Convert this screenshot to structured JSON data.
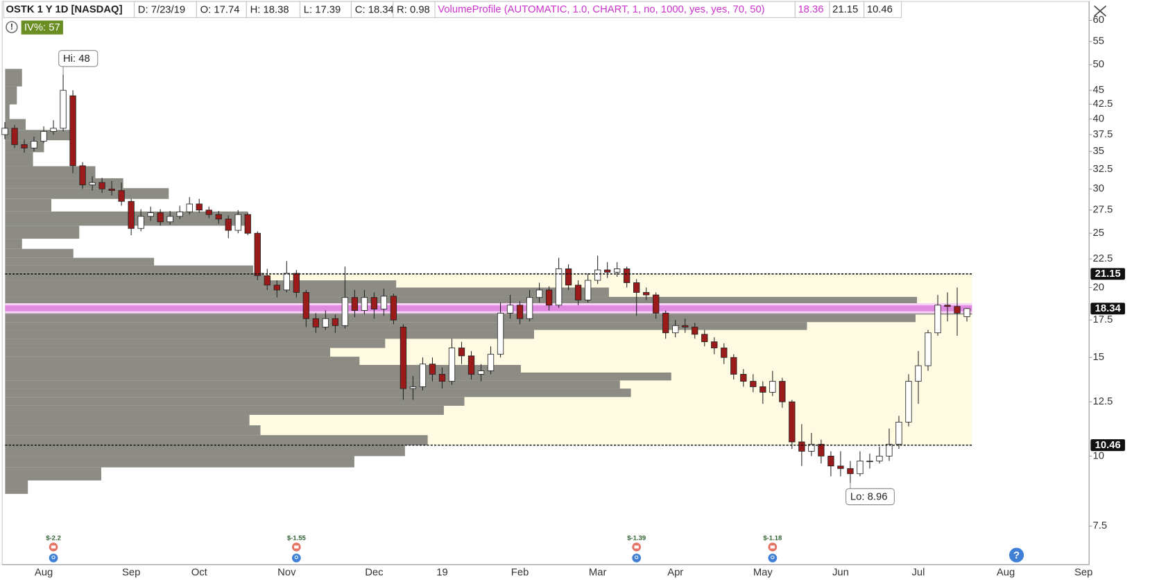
{
  "chart_data": {
    "type": "candlestick",
    "log_y": true,
    "ylim": [
      6.4,
      60.5
    ],
    "yticks": [
      7.5,
      10,
      12.5,
      15,
      17.5,
      20,
      22.5,
      25,
      27.5,
      30,
      32.5,
      35,
      37.5,
      40,
      42.5,
      45,
      50,
      55,
      60
    ],
    "up_color": "#ffffff",
    "down_color": "#9b1b1b",
    "header": {
      "symbol": "OSTK 1 Y 1D [NASDAQ]",
      "fields": [
        {
          "label": "D:",
          "value": "7/23/19"
        },
        {
          "label": "O:",
          "value": 17.74
        },
        {
          "label": "H:",
          "value": 18.38
        },
        {
          "label": "L:",
          "value": 17.39
        },
        {
          "label": "C:",
          "value": 18.34
        },
        {
          "label": "R:",
          "value": 0.98
        }
      ]
    },
    "iv": {
      "label": "IV%:",
      "value": 57
    },
    "study": {
      "name": "VolumeProfile (AUTOMATIC, 1.0, CHART, 1, no, 1000, yes, yes, 70, 50)",
      "color": "#cc33cc",
      "poc": 18.36,
      "value_area_high": 21.15,
      "value_area_low": 10.46
    },
    "annotations": {
      "high": {
        "label": "Hi:",
        "value": 48
      },
      "low": {
        "label": "Lo:",
        "value": 8.96
      }
    },
    "categories": [
      null,
      null,
      null,
      null,
      "Aug",
      null,
      null,
      null,
      null,
      null,
      null,
      null,
      null,
      "Sep",
      null,
      null,
      null,
      null,
      null,
      null,
      "Oct",
      null,
      null,
      null,
      null,
      null,
      null,
      null,
      null,
      "Nov",
      null,
      null,
      null,
      null,
      null,
      null,
      null,
      null,
      "Dec",
      null,
      null,
      null,
      null,
      null,
      null,
      "19",
      null,
      null,
      null,
      null,
      null,
      null,
      null,
      "Feb",
      null,
      null,
      null,
      null,
      null,
      null,
      null,
      "Mar",
      null,
      null,
      null,
      null,
      null,
      null,
      null,
      "Apr",
      null,
      null,
      null,
      null,
      null,
      null,
      null,
      null,
      "May",
      null,
      null,
      null,
      null,
      null,
      null,
      null,
      "Jun",
      null,
      null,
      null,
      null,
      null,
      null,
      null,
      "Jul",
      null,
      null,
      null,
      null,
      null,
      null,
      null,
      null,
      "Aug",
      null,
      null,
      null,
      null,
      null,
      null,
      null,
      "Sep"
    ],
    "earnings": [
      null,
      null,
      null,
      null,
      null,
      "$-2.2",
      null,
      null,
      null,
      null,
      null,
      null,
      null,
      null,
      null,
      null,
      null,
      null,
      null,
      null,
      null,
      null,
      null,
      null,
      null,
      null,
      null,
      null,
      null,
      null,
      "$-1.55",
      null,
      null,
      null,
      null,
      null,
      null,
      null,
      null,
      null,
      null,
      null,
      null,
      null,
      null,
      null,
      null,
      null,
      null,
      null,
      null,
      null,
      null,
      null,
      null,
      null,
      null,
      null,
      null,
      null,
      null,
      null,
      null,
      null,
      null,
      "$-1.39",
      null,
      null,
      null,
      null,
      null,
      null,
      null,
      null,
      null,
      null,
      null,
      null,
      null,
      "$-1.18",
      null,
      null,
      null,
      null,
      null,
      null,
      null,
      null,
      null,
      null,
      null,
      null,
      null,
      null,
      null,
      null,
      null,
      null,
      null,
      null,
      null,
      null,
      null,
      null,
      null,
      null,
      null,
      null,
      null,
      null,
      null,
      null
    ],
    "candles": [
      [
        37.5,
        39.5,
        36.8,
        38.5
      ],
      [
        38.5,
        39.0,
        35.5,
        36.0
      ],
      [
        36.0,
        36.8,
        34.8,
        35.5
      ],
      [
        35.5,
        37.2,
        35.0,
        36.5
      ],
      [
        36.5,
        38.8,
        36.2,
        38.0
      ],
      [
        38.0,
        39.8,
        37.5,
        38.5
      ],
      [
        38.5,
        48.0,
        38.0,
        45.0
      ],
      [
        44.0,
        45.0,
        32.0,
        33.0
      ],
      [
        33.0,
        33.5,
        30.0,
        30.5
      ],
      [
        30.5,
        31.6,
        29.8,
        30.8
      ],
      [
        30.8,
        31.4,
        29.5,
        30.0
      ],
      [
        30.0,
        31.0,
        29.2,
        29.8
      ],
      [
        29.8,
        30.8,
        28.0,
        28.5
      ],
      [
        28.5,
        28.8,
        24.8,
        25.5
      ],
      [
        25.5,
        27.6,
        25.2,
        26.8
      ],
      [
        26.8,
        27.9,
        26.3,
        27.2
      ],
      [
        27.2,
        27.6,
        25.8,
        26.2
      ],
      [
        26.2,
        27.4,
        25.9,
        26.8
      ],
      [
        26.8,
        28.0,
        26.5,
        27.3
      ],
      [
        27.3,
        29.0,
        27.0,
        28.2
      ],
      [
        28.2,
        28.8,
        27.2,
        27.5
      ],
      [
        27.5,
        27.9,
        26.6,
        27.0
      ],
      [
        27.0,
        27.4,
        26.0,
        26.5
      ],
      [
        26.5,
        26.9,
        24.5,
        25.3
      ],
      [
        25.3,
        27.5,
        25.0,
        27.0
      ],
      [
        27.0,
        27.2,
        24.8,
        25.0
      ],
      [
        25.0,
        25.2,
        20.6,
        21.0
      ],
      [
        21.0,
        21.6,
        19.8,
        20.2
      ],
      [
        20.2,
        20.6,
        19.2,
        19.8
      ],
      [
        19.8,
        22.3,
        19.6,
        21.2
      ],
      [
        21.2,
        21.5,
        19.2,
        19.6
      ],
      [
        19.6,
        19.8,
        17.0,
        17.6
      ],
      [
        17.6,
        18.0,
        16.6,
        17.0
      ],
      [
        17.0,
        18.2,
        16.8,
        17.6
      ],
      [
        17.6,
        17.9,
        16.6,
        17.1
      ],
      [
        17.1,
        21.8,
        16.9,
        19.2
      ],
      [
        19.2,
        19.8,
        17.7,
        18.2
      ],
      [
        18.2,
        19.8,
        17.9,
        19.2
      ],
      [
        19.2,
        19.6,
        17.6,
        18.3
      ],
      [
        18.3,
        19.9,
        17.8,
        19.3
      ],
      [
        19.3,
        19.5,
        17.2,
        17.5
      ],
      [
        17.0,
        17.2,
        12.6,
        13.2
      ],
      [
        13.2,
        13.9,
        12.6,
        13.3
      ],
      [
        13.3,
        15.0,
        13.1,
        14.6
      ],
      [
        14.6,
        15.0,
        13.6,
        14.0
      ],
      [
        14.0,
        14.4,
        13.2,
        13.6
      ],
      [
        13.6,
        16.2,
        13.4,
        15.6
      ],
      [
        15.6,
        16.0,
        14.6,
        15.1
      ],
      [
        15.1,
        15.4,
        13.7,
        14.0
      ],
      [
        14.0,
        14.6,
        13.6,
        14.2
      ],
      [
        14.2,
        15.7,
        14.0,
        15.2
      ],
      [
        15.2,
        18.8,
        15.0,
        18.0
      ],
      [
        18.0,
        19.4,
        17.6,
        18.6
      ],
      [
        18.6,
        18.9,
        17.2,
        17.6
      ],
      [
        17.6,
        19.8,
        17.4,
        19.2
      ],
      [
        19.2,
        20.4,
        18.8,
        19.8
      ],
      [
        19.8,
        20.1,
        18.2,
        18.6
      ],
      [
        18.6,
        22.6,
        18.4,
        21.6
      ],
      [
        21.6,
        22.0,
        19.8,
        20.2
      ],
      [
        20.2,
        20.6,
        18.6,
        19.0
      ],
      [
        19.0,
        21.2,
        18.8,
        20.6
      ],
      [
        20.6,
        22.8,
        20.3,
        21.5
      ],
      [
        21.5,
        22.2,
        20.8,
        21.3
      ],
      [
        21.3,
        22.2,
        20.9,
        21.6
      ],
      [
        21.6,
        21.8,
        20.0,
        20.4
      ],
      [
        20.4,
        20.7,
        17.8,
        19.6
      ],
      [
        19.6,
        20.0,
        19.0,
        19.4
      ],
      [
        19.4,
        19.6,
        17.6,
        18.0
      ],
      [
        18.0,
        18.2,
        16.2,
        16.6
      ],
      [
        16.6,
        17.5,
        16.3,
        17.1
      ],
      [
        17.1,
        17.6,
        16.6,
        17.0
      ],
      [
        17.0,
        17.3,
        16.2,
        16.5
      ],
      [
        16.5,
        16.8,
        15.7,
        16.0
      ],
      [
        16.0,
        16.3,
        15.2,
        15.6
      ],
      [
        15.6,
        15.9,
        14.6,
        15.0
      ],
      [
        15.0,
        15.2,
        13.7,
        14.0
      ],
      [
        14.0,
        14.3,
        13.3,
        13.6
      ],
      [
        13.6,
        14.0,
        13.0,
        13.3
      ],
      [
        13.3,
        13.6,
        12.4,
        13.0
      ],
      [
        13.0,
        14.2,
        12.8,
        13.6
      ],
      [
        13.6,
        13.8,
        12.2,
        12.5
      ],
      [
        12.5,
        12.6,
        10.3,
        10.6
      ],
      [
        10.6,
        11.4,
        9.6,
        10.2
      ],
      [
        10.2,
        11.0,
        10.0,
        10.5
      ],
      [
        10.5,
        10.7,
        9.7,
        10.0
      ],
      [
        10.0,
        10.2,
        9.2,
        9.6
      ],
      [
        9.6,
        10.2,
        9.2,
        9.5
      ],
      [
        9.5,
        9.8,
        8.96,
        9.3
      ],
      [
        9.3,
        10.2,
        9.2,
        9.8
      ],
      [
        9.8,
        10.1,
        9.5,
        9.8
      ],
      [
        9.8,
        10.4,
        9.7,
        10.0
      ],
      [
        10.0,
        11.2,
        9.8,
        10.5
      ],
      [
        10.5,
        11.8,
        10.3,
        11.5
      ],
      [
        11.5,
        14.0,
        11.3,
        13.6
      ],
      [
        13.6,
        15.4,
        12.4,
        14.5
      ],
      [
        14.5,
        16.8,
        14.2,
        16.6
      ],
      [
        16.6,
        19.4,
        16.4,
        18.6
      ],
      [
        18.6,
        19.6,
        17.4,
        18.5
      ],
      [
        18.5,
        20.0,
        16.4,
        18.0
      ],
      [
        17.74,
        18.38,
        17.39,
        18.34
      ],
      null,
      null,
      null,
      null,
      null,
      null,
      null,
      null,
      null,
      null,
      null,
      null
    ],
    "volume_profile": {
      "color": "#8c8b84",
      "prices": [
        47.4,
        44.1,
        40.9,
        39.1,
        37.4,
        35.9,
        33.9,
        32.0,
        30.7,
        29.5,
        28.1,
        26.6,
        25.0,
        23.9,
        23.0,
        22.2,
        21.6,
        20.9,
        20.3,
        19.7,
        18.8,
        18.2,
        17.6,
        17.1,
        16.5,
        15.9,
        15.3,
        14.8,
        14.3,
        13.9,
        13.4,
        13.0,
        12.5,
        12.1,
        11.6,
        11.1,
        10.7,
        10.2,
        9.8,
        9.3,
        8.8
      ],
      "volumes": [
        23,
        16,
        6,
        28,
        88,
        53,
        38,
        123,
        161,
        223,
        63,
        331,
        101,
        23,
        93,
        203,
        338,
        353,
        533,
        823,
        1243,
        1318,
        1241,
        1093,
        721,
        518,
        443,
        483,
        703,
        908,
        838,
        853,
        626,
        598,
        333,
        348,
        576,
        545,
        476,
        131,
        31
      ]
    }
  }
}
